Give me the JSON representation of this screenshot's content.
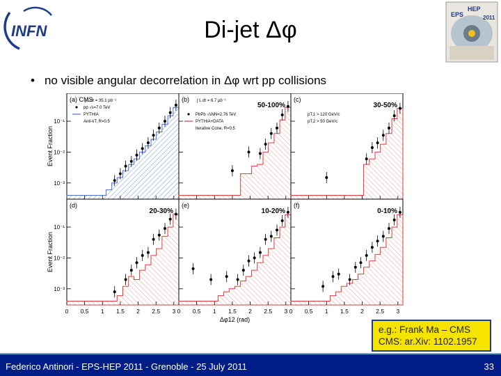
{
  "slide": {
    "title": "Di-jet Δφ",
    "bullet": "no visible angular decorrelation in Δφ wrt pp collisions",
    "bullet_marker": "•",
    "note_lines": [
      "e.g.: Frank Ma – CMS",
      "CMS: ar.Xiv: 1102.1957"
    ],
    "footer": "Federico Antinori - EPS-HEP 2011 - Grenoble - 25 July 2011",
    "page_number": "33",
    "logo_text": "INFN",
    "conference_logo": [
      "EPS",
      "HEP",
      "2011"
    ]
  },
  "colors": {
    "footer_bg": "#001c87",
    "note_bg": "#f6e400",
    "pp_hist": "#4a6fd0",
    "pbpb_hist": "#e23a3a",
    "data_marker": "#000000"
  },
  "chart_data": {
    "type": "scatter",
    "ylabel": "Event Fraction",
    "xlabel": "Δφ12 (rad)",
    "xlim": [
      0,
      3.14
    ],
    "ylim": [
      0.0003,
      0.8
    ],
    "yscale": "log",
    "x_ticks": [
      "0",
      "0.5",
      "1",
      "1.5",
      "2",
      "2.5",
      "3"
    ],
    "y_ticks": [
      "10⁻¹",
      "10⁻²",
      "10⁻³"
    ],
    "y_tick_values": [
      0.1,
      0.01,
      0.001
    ],
    "bins": [
      0.0,
      0.16,
      0.31,
      0.47,
      0.63,
      0.79,
      0.94,
      1.1,
      1.26,
      1.41,
      1.57,
      1.73,
      1.88,
      2.04,
      2.2,
      2.36,
      2.51,
      2.67,
      2.83,
      2.98,
      3.14
    ],
    "panels": [
      {
        "letter": "(a)",
        "experiment": "CMS",
        "label": "",
        "lumi": "∫ L dt = 35.1 pb⁻¹",
        "legend": [
          "pp √s=7.0 TeV",
          "PYTHIA",
          "Anti-kT, R=0.5"
        ],
        "hist_style": "pp",
        "hist": [
          0.0004,
          0.0004,
          0.0004,
          0.0004,
          0.0004,
          0.0004,
          0.0004,
          0.0006,
          0.001,
          0.0015,
          0.0025,
          0.004,
          0.006,
          0.01,
          0.016,
          0.026,
          0.045,
          0.08,
          0.15,
          0.28
        ],
        "points": [
          [
            1.34,
            0.0012
          ],
          [
            1.5,
            0.002
          ],
          [
            1.65,
            0.0035
          ],
          [
            1.81,
            0.005
          ],
          [
            1.96,
            0.008
          ],
          [
            2.12,
            0.013
          ],
          [
            2.28,
            0.02
          ],
          [
            2.43,
            0.035
          ],
          [
            2.59,
            0.06
          ],
          [
            2.75,
            0.1
          ],
          [
            2.9,
            0.19
          ],
          [
            3.06,
            0.33
          ]
        ]
      },
      {
        "letter": "(b)",
        "experiment": "",
        "label": "50-100%",
        "lumi": "∫ L dt = 6.7 μb⁻¹",
        "legend": [
          "PbPb √sNN=2.76 TeV",
          "PYTHIA+DATA",
          "Iterative Cone, R=0.5"
        ],
        "hist_style": "pbpb",
        "hist": [
          0.0004,
          0.0004,
          0.0004,
          0.0004,
          0.0004,
          0.0004,
          0.0004,
          0.0004,
          0.0004,
          0.0004,
          0.0004,
          0.002,
          0.002,
          0.0035,
          0.004,
          0.01,
          0.02,
          0.04,
          0.11,
          0.28
        ],
        "points": [
          [
            1.5,
            0.0025
          ],
          [
            1.96,
            0.01
          ],
          [
            2.28,
            0.009
          ],
          [
            2.43,
            0.018
          ],
          [
            2.59,
            0.04
          ],
          [
            2.75,
            0.06
          ],
          [
            2.9,
            0.16
          ],
          [
            3.06,
            0.3
          ]
        ]
      },
      {
        "letter": "(c)",
        "experiment": "",
        "label": "30-50%",
        "lumi": "",
        "legend": [
          "pT,1 > 120 GeV/c",
          "pT,2 > 50 GeV/c"
        ],
        "hist_style": "pbpb",
        "hist": [
          0.0004,
          0.0004,
          0.0004,
          0.0004,
          0.0004,
          0.0004,
          0.0004,
          0.0004,
          0.0004,
          0.0004,
          0.0004,
          0.0004,
          0.0004,
          0.004,
          0.006,
          0.01,
          0.018,
          0.04,
          0.12,
          0.26
        ],
        "points": [
          [
            1.0,
            0.0015
          ],
          [
            2.12,
            0.006
          ],
          [
            2.28,
            0.014
          ],
          [
            2.43,
            0.02
          ],
          [
            2.59,
            0.035
          ],
          [
            2.75,
            0.06
          ],
          [
            2.9,
            0.15
          ],
          [
            3.06,
            0.26
          ]
        ]
      },
      {
        "letter": "(d)",
        "experiment": "",
        "label": "20-30%",
        "lumi": "",
        "legend": [],
        "hist_style": "pbpb",
        "hist": [
          0.0004,
          0.0004,
          0.0004,
          0.0004,
          0.0004,
          0.0004,
          0.0004,
          0.0004,
          0.0004,
          0.0006,
          0.0012,
          0.0025,
          0.002,
          0.004,
          0.006,
          0.012,
          0.02,
          0.05,
          0.1,
          0.26
        ],
        "points": [
          [
            1.34,
            0.0008
          ],
          [
            1.65,
            0.002
          ],
          [
            1.81,
            0.004
          ],
          [
            1.96,
            0.007
          ],
          [
            2.12,
            0.012
          ],
          [
            2.28,
            0.015
          ],
          [
            2.43,
            0.04
          ],
          [
            2.59,
            0.055
          ],
          [
            2.75,
            0.09
          ],
          [
            2.9,
            0.18
          ],
          [
            3.06,
            0.26
          ]
        ]
      },
      {
        "letter": "(e)",
        "experiment": "",
        "label": "10-20%",
        "lumi": "",
        "legend": [],
        "hist_style": "pbpb",
        "hist": [
          0.0004,
          0.0004,
          0.0004,
          0.0004,
          0.0004,
          0.0004,
          0.0004,
          0.0006,
          0.0008,
          0.001,
          0.0012,
          0.0018,
          0.0025,
          0.004,
          0.007,
          0.012,
          0.02,
          0.045,
          0.1,
          0.25
        ],
        "points": [
          [
            0.4,
            0.0045
          ],
          [
            0.9,
            0.002
          ],
          [
            1.34,
            0.0025
          ],
          [
            1.65,
            0.002
          ],
          [
            1.81,
            0.004
          ],
          [
            1.96,
            0.008
          ],
          [
            2.12,
            0.01
          ],
          [
            2.28,
            0.015
          ],
          [
            2.43,
            0.04
          ],
          [
            2.59,
            0.05
          ],
          [
            2.75,
            0.08
          ],
          [
            2.9,
            0.16
          ],
          [
            3.06,
            0.3
          ]
        ]
      },
      {
        "letter": "(f)",
        "experiment": "",
        "label": "0-10%",
        "lumi": "",
        "legend": [],
        "hist_style": "pbpb",
        "hist": [
          0.0004,
          0.0004,
          0.0004,
          0.0004,
          0.0004,
          0.0004,
          0.0004,
          0.0006,
          0.0008,
          0.0012,
          0.0015,
          0.002,
          0.003,
          0.005,
          0.008,
          0.013,
          0.022,
          0.045,
          0.1,
          0.25
        ],
        "points": [
          [
            0.9,
            0.0012
          ],
          [
            1.18,
            0.0025
          ],
          [
            1.34,
            0.003
          ],
          [
            1.65,
            0.002
          ],
          [
            1.81,
            0.005
          ],
          [
            1.96,
            0.007
          ],
          [
            2.12,
            0.012
          ],
          [
            2.28,
            0.022
          ],
          [
            2.43,
            0.035
          ],
          [
            2.59,
            0.05
          ],
          [
            2.75,
            0.09
          ],
          [
            2.9,
            0.17
          ],
          [
            3.06,
            0.3
          ]
        ]
      }
    ]
  }
}
